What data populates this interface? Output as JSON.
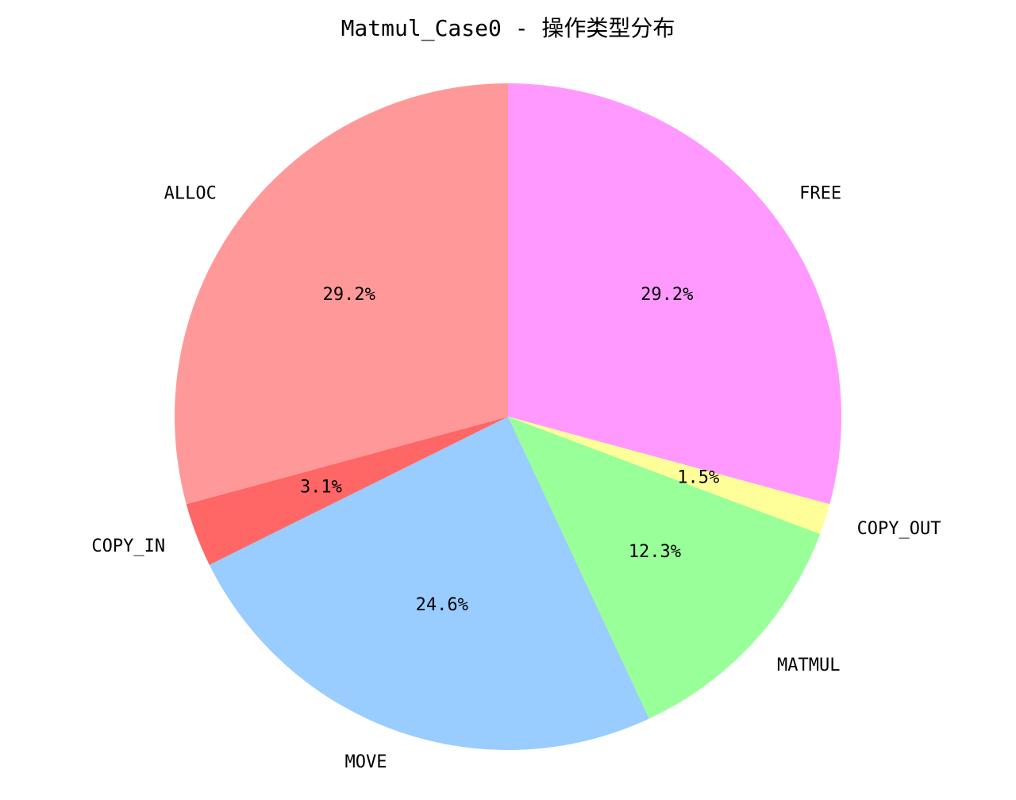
{
  "chart_data": {
    "type": "pie",
    "title": "Matmul_Case0 - 操作类型分布",
    "slices": [
      {
        "label": "FREE",
        "percent": 29.2,
        "percent_label": "29.2%",
        "color": "#ff99ff"
      },
      {
        "label": "COPY_OUT",
        "percent": 1.5,
        "percent_label": "1.5%",
        "color": "#ffff99"
      },
      {
        "label": "MATMUL",
        "percent": 12.3,
        "percent_label": "12.3%",
        "color": "#99ff99"
      },
      {
        "label": "MOVE",
        "percent": 24.6,
        "percent_label": "24.6%",
        "color": "#99ccff"
      },
      {
        "label": "COPY_IN",
        "percent": 3.1,
        "percent_label": "3.1%",
        "color": "#ff6666"
      },
      {
        "label": "ALLOC",
        "percent": 29.2,
        "percent_label": "29.2%",
        "color": "#ff9999"
      }
    ],
    "start_angle": "top",
    "direction": "clockwise"
  }
}
